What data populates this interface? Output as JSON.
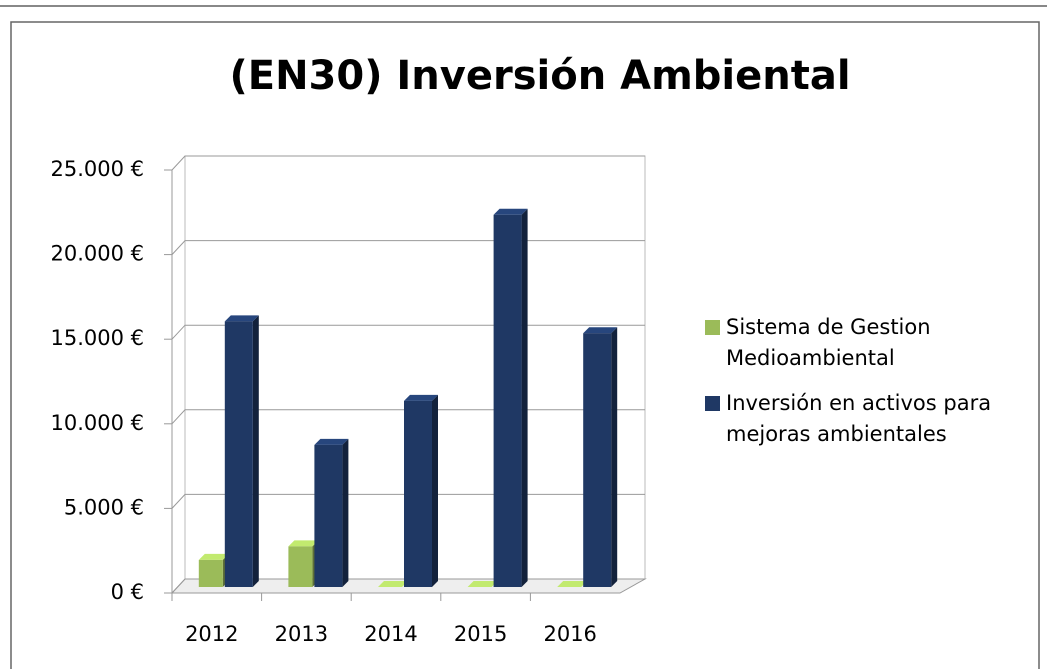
{
  "chart_data": {
    "type": "bar3d",
    "title": "(EN30) Inversión Ambiental",
    "categories": [
      "2012",
      "2013",
      "2014",
      "2015",
      "2016"
    ],
    "series": [
      {
        "name": "Sistema de Gestion Medioambiental",
        "color": "#9bbb59",
        "values": [
          1600,
          2400,
          0,
          0,
          0
        ]
      },
      {
        "name": "Inversión en activos para mejoras ambientales",
        "color": "#1f3864",
        "values": [
          15700,
          8400,
          11000,
          22000,
          15000
        ]
      }
    ],
    "ylim": [
      0,
      25000
    ],
    "yticks": [
      {
        "value": 0,
        "label": "0 €"
      },
      {
        "value": 5000,
        "label": "5.000 €"
      },
      {
        "value": 10000,
        "label": "10.000 €"
      },
      {
        "value": 15000,
        "label": "15.000 €"
      },
      {
        "value": 20000,
        "label": "20.000 €"
      },
      {
        "value": 25000,
        "label": "25.000 €"
      }
    ],
    "grid": true,
    "legend": "right"
  }
}
